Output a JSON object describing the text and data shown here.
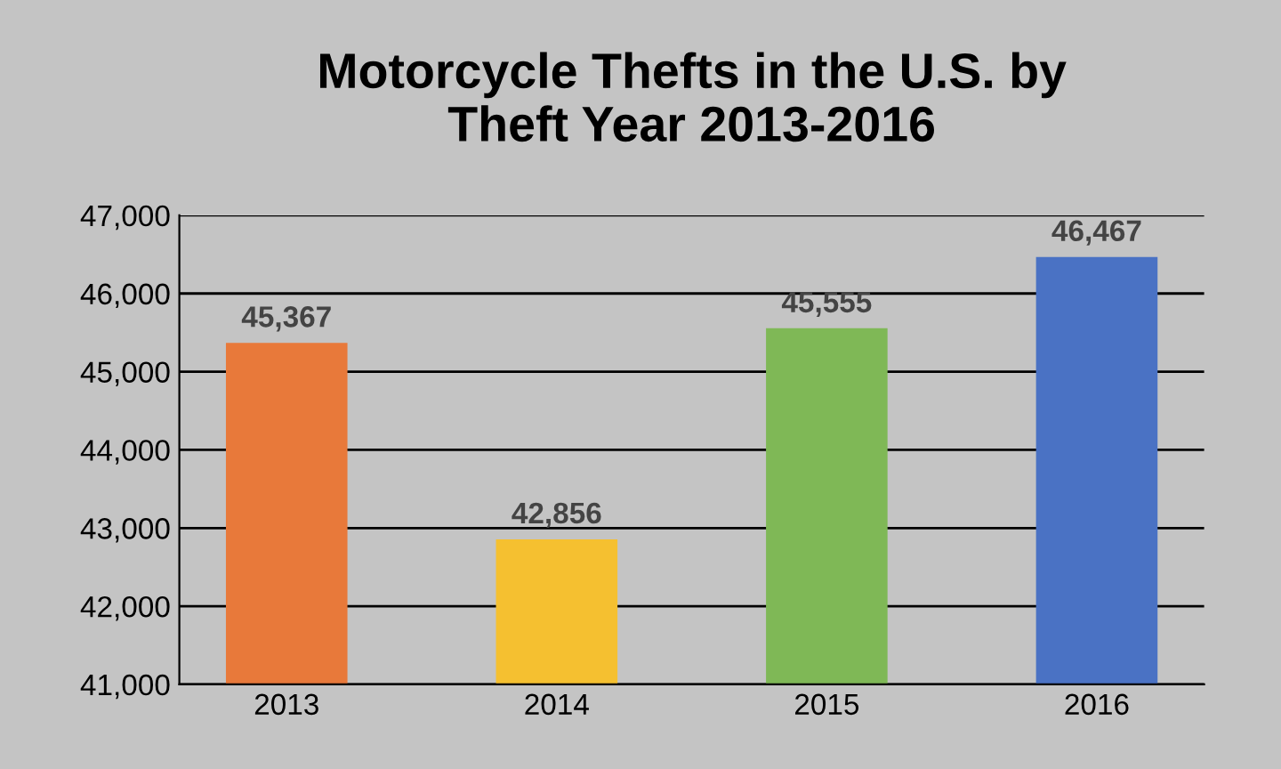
{
  "chart_data": {
    "type": "bar",
    "title": "Motorcycle Thefts in the U.S. by\nTheft Year 2013-2016",
    "categories": [
      "2013",
      "2014",
      "2015",
      "2016"
    ],
    "values": [
      45367,
      42856,
      45555,
      46467
    ],
    "colors": [
      "#e8793a",
      "#f5c030",
      "#7fb856",
      "#4a72c4"
    ],
    "value_labels": [
      "45,367",
      "42,856",
      "45,555",
      "46,467"
    ],
    "ylim": [
      41000,
      47000
    ],
    "yticks": [
      {
        "value": 41000,
        "label": "41,000"
      },
      {
        "value": 42000,
        "label": "42,000"
      },
      {
        "value": 43000,
        "label": "43,000"
      },
      {
        "value": 44000,
        "label": "44,000"
      },
      {
        "value": 45000,
        "label": "45,000"
      },
      {
        "value": 46000,
        "label": "46,000"
      },
      {
        "value": 47000,
        "label": "47,000"
      }
    ],
    "grid": "y"
  }
}
